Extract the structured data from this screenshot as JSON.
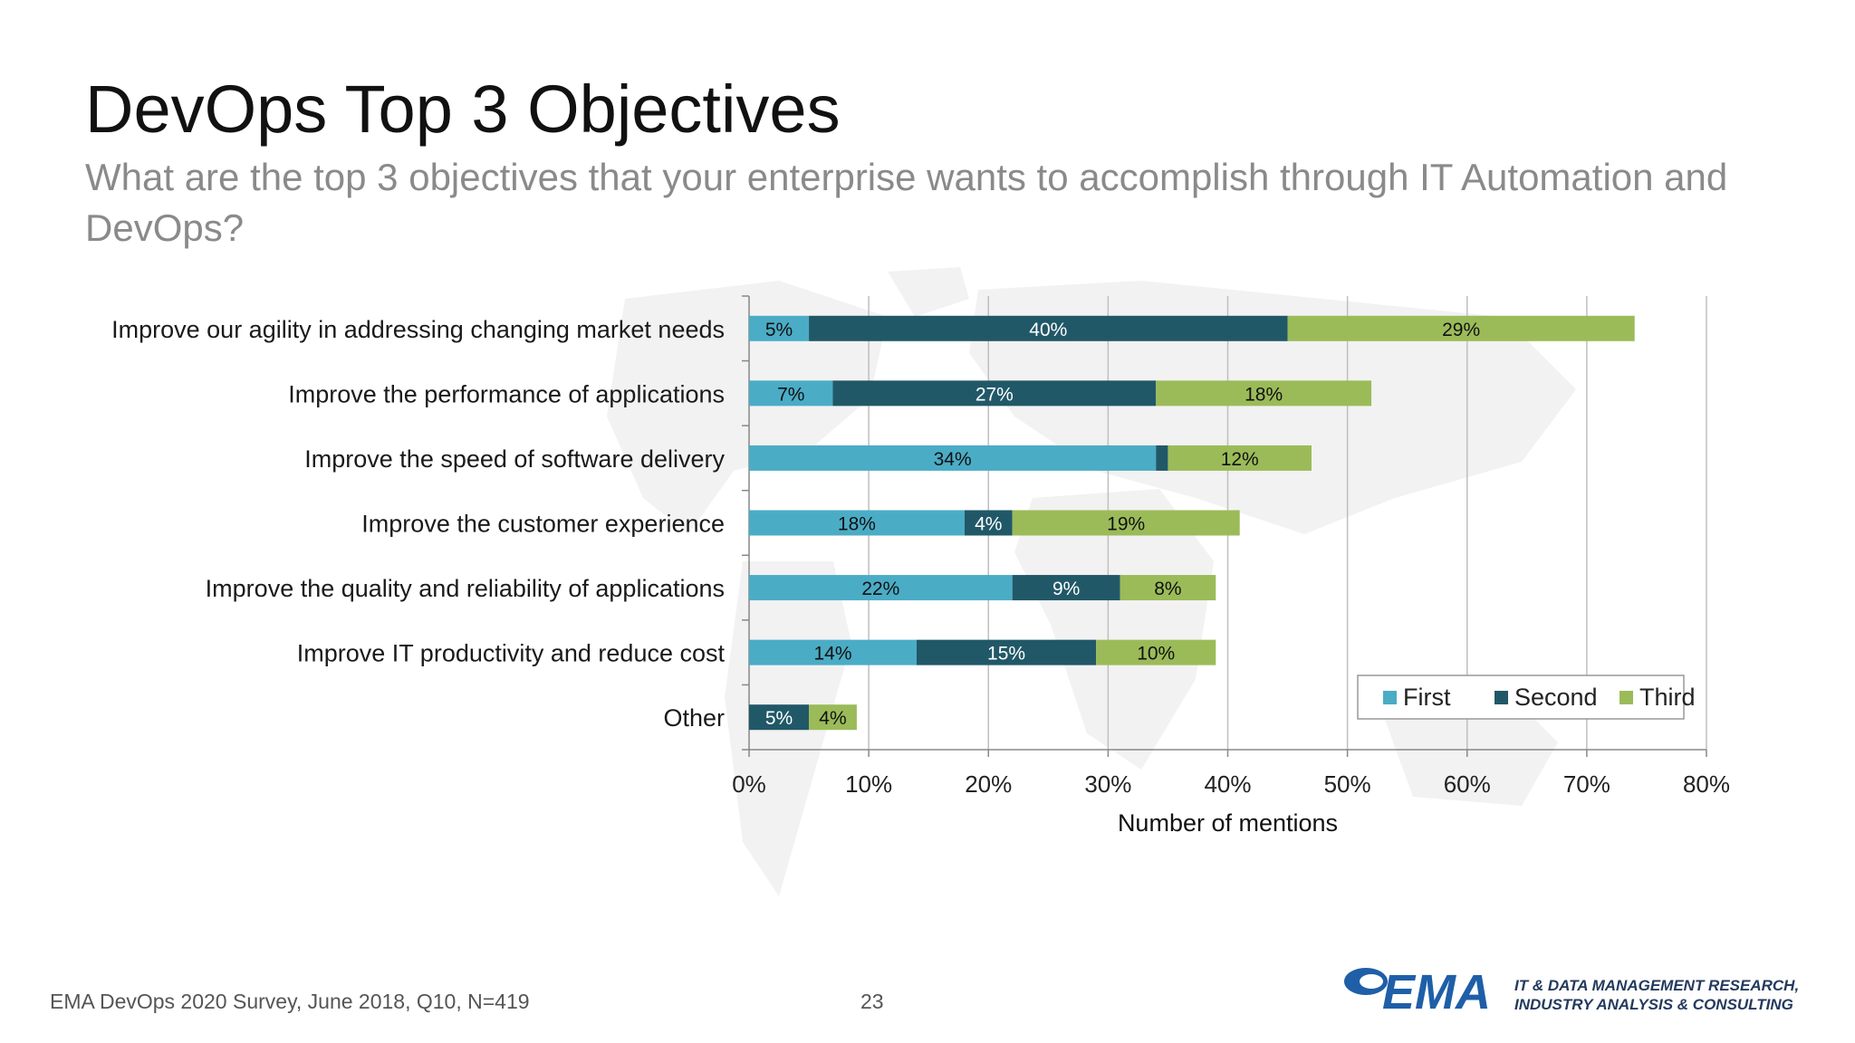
{
  "slide": {
    "title": "DevOps Top 3 Objectives",
    "subtitle": "What are the top 3 objectives that your enterprise wants to accomplish through IT Automation and DevOps?",
    "source": "EMA DevOps 2020 Survey, June 2018, Q10, N=419",
    "page_number": "23"
  },
  "brand": {
    "logo_text": "EMA",
    "tagline_line1": "IT & DATA MANAGEMENT RESEARCH,",
    "tagline_line2": "INDUSTRY ANALYSIS & CONSULTING",
    "logo_color": "#1f5fa8"
  },
  "chart_data": {
    "type": "bar",
    "orientation": "horizontal",
    "stacked": true,
    "title": "DevOps Top 3 Objectives",
    "xlabel": "Number of mentions",
    "ylabel": "",
    "xlim": [
      0,
      80
    ],
    "xticks": [
      "0%",
      "10%",
      "20%",
      "30%",
      "40%",
      "50%",
      "60%",
      "70%",
      "80%"
    ],
    "grid": true,
    "legend_position": "bottom-right",
    "categories": [
      "Improve our agility in addressing changing market needs",
      "Improve the performance of applications",
      "Improve the speed of software delivery",
      "Improve the customer experience",
      "Improve the quality and reliability of applications",
      "Improve IT productivity and reduce cost",
      "Other"
    ],
    "series": [
      {
        "name": "First",
        "color": "#4bacc6",
        "values": [
          5,
          7,
          34,
          18,
          22,
          14,
          0
        ]
      },
      {
        "name": "Second",
        "color": "#215868",
        "values": [
          40,
          27,
          1,
          4,
          9,
          15,
          5
        ]
      },
      {
        "name": "Third",
        "color": "#9bbb59",
        "values": [
          29,
          18,
          12,
          19,
          8,
          10,
          4
        ]
      }
    ],
    "data_labels": [
      [
        "5%",
        "40%",
        "29%"
      ],
      [
        "7%",
        "27%",
        "18%"
      ],
      [
        "34%",
        "",
        "12%"
      ],
      [
        "18%",
        "4%",
        "19%"
      ],
      [
        "22%",
        "9%",
        "8%"
      ],
      [
        "14%",
        "15%",
        "10%"
      ],
      [
        "",
        "5%",
        "4%"
      ]
    ]
  }
}
